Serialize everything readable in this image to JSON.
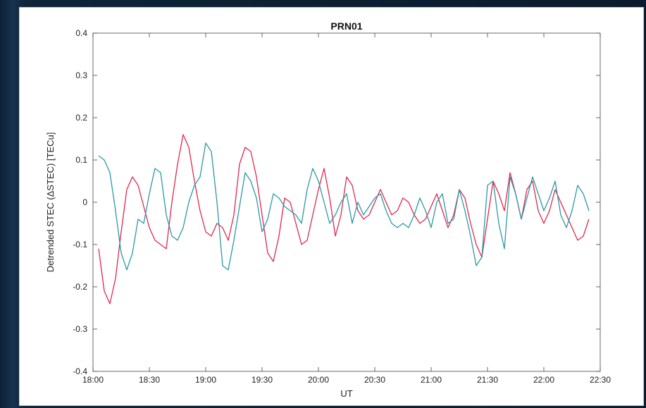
{
  "chart_data": {
    "type": "line",
    "title": "PRN01",
    "xlabel": "UT",
    "ylabel": "Detrended STEC (ΔSTEC) [TECu]",
    "xlim": [
      "18:00",
      "22:30"
    ],
    "ylim": [
      -0.4,
      0.4
    ],
    "xticks": [
      "18:00",
      "18:30",
      "19:00",
      "19:30",
      "20:00",
      "20:30",
      "21:00",
      "21:30",
      "22:00",
      "22:30"
    ],
    "yticks": [
      "-0.4",
      "-0.3",
      "-0.2",
      "-0.1",
      "0",
      "0.1",
      "0.2",
      "0.3",
      "0.4"
    ],
    "grid": false,
    "series": [
      {
        "color": "#e0284f",
        "x": [
          "18:03",
          "18:06",
          "18:09",
          "18:12",
          "18:15",
          "18:18",
          "18:21",
          "18:24",
          "18:27",
          "18:30",
          "18:33",
          "18:36",
          "18:39",
          "18:42",
          "18:45",
          "18:48",
          "18:51",
          "18:54",
          "18:57",
          "19:00",
          "19:03",
          "19:06",
          "19:09",
          "19:12",
          "19:15",
          "19:18",
          "19:21",
          "19:24",
          "19:27",
          "19:30",
          "19:33",
          "19:36",
          "19:39",
          "19:42",
          "19:45",
          "19:48",
          "19:51",
          "19:54",
          "19:57",
          "20:00",
          "20:03",
          "20:06",
          "20:09",
          "20:12",
          "20:15",
          "20:18",
          "20:21",
          "20:24",
          "20:27",
          "20:30",
          "20:33",
          "20:36",
          "20:39",
          "20:42",
          "20:45",
          "20:48",
          "20:51",
          "20:54",
          "20:57",
          "21:00",
          "21:03",
          "21:06",
          "21:09",
          "21:12",
          "21:15",
          "21:18",
          "21:21",
          "21:24",
          "21:27",
          "21:30",
          "21:33",
          "21:36",
          "21:39",
          "21:42",
          "21:45",
          "21:48",
          "21:51",
          "21:54",
          "21:57",
          "22:00",
          "22:03",
          "22:06",
          "22:09",
          "22:12",
          "22:15",
          "22:18",
          "22:21",
          "22:24"
        ],
        "y": [
          -0.11,
          -0.21,
          -0.24,
          -0.18,
          -0.07,
          0.03,
          0.06,
          0.04,
          -0.01,
          -0.06,
          -0.09,
          -0.1,
          -0.11,
          0.0,
          0.09,
          0.16,
          0.13,
          0.05,
          -0.02,
          -0.07,
          -0.08,
          -0.05,
          -0.06,
          -0.09,
          -0.03,
          0.09,
          0.13,
          0.12,
          0.06,
          -0.03,
          -0.12,
          -0.14,
          -0.08,
          0.01,
          0.0,
          -0.05,
          -0.1,
          -0.09,
          -0.03,
          0.03,
          0.08,
          0.01,
          -0.08,
          -0.03,
          0.06,
          0.04,
          -0.02,
          -0.04,
          -0.03,
          0.0,
          0.03,
          0.0,
          -0.03,
          -0.02,
          0.01,
          0.0,
          -0.03,
          -0.05,
          -0.04,
          -0.01,
          0.02,
          -0.02,
          -0.06,
          -0.03,
          0.03,
          0.01,
          -0.05,
          -0.1,
          -0.13,
          -0.04,
          0.05,
          0.02,
          -0.02,
          0.07,
          0.02,
          -0.04,
          0.03,
          0.05,
          -0.02,
          -0.05,
          -0.02,
          0.03,
          0.0,
          -0.03,
          -0.06,
          -0.09,
          -0.08,
          -0.04
        ]
      },
      {
        "color": "#2a9aa6",
        "x": [
          "18:03",
          "18:06",
          "18:09",
          "18:12",
          "18:15",
          "18:18",
          "18:21",
          "18:24",
          "18:27",
          "18:30",
          "18:33",
          "18:36",
          "18:39",
          "18:42",
          "18:45",
          "18:48",
          "18:51",
          "18:54",
          "18:57",
          "19:00",
          "19:03",
          "19:06",
          "19:09",
          "19:12",
          "19:15",
          "19:18",
          "19:21",
          "19:24",
          "19:27",
          "19:30",
          "19:33",
          "19:36",
          "19:39",
          "19:42",
          "19:45",
          "19:48",
          "19:51",
          "19:54",
          "19:57",
          "20:00",
          "20:03",
          "20:06",
          "20:09",
          "20:12",
          "20:15",
          "20:18",
          "20:21",
          "20:24",
          "20:27",
          "20:30",
          "20:33",
          "20:36",
          "20:39",
          "20:42",
          "20:45",
          "20:48",
          "20:51",
          "20:54",
          "20:57",
          "21:00",
          "21:03",
          "21:06",
          "21:09",
          "21:12",
          "21:15",
          "21:18",
          "21:21",
          "21:24",
          "21:27",
          "21:30",
          "21:33",
          "21:36",
          "21:39",
          "21:42",
          "21:45",
          "21:48",
          "21:51",
          "21:54",
          "21:57",
          "22:00",
          "22:03",
          "22:06",
          "22:09",
          "22:12",
          "22:15",
          "22:18",
          "22:21",
          "22:24"
        ],
        "y": [
          0.11,
          0.1,
          0.07,
          -0.02,
          -0.12,
          -0.16,
          -0.12,
          -0.04,
          -0.05,
          0.02,
          0.08,
          0.07,
          -0.03,
          -0.08,
          -0.09,
          -0.06,
          0.0,
          0.04,
          0.06,
          0.14,
          0.12,
          0.0,
          -0.15,
          -0.16,
          -0.09,
          -0.01,
          0.07,
          0.05,
          0.01,
          -0.07,
          -0.04,
          0.02,
          0.01,
          -0.01,
          -0.02,
          -0.03,
          -0.05,
          0.03,
          0.08,
          0.05,
          0.0,
          -0.05,
          -0.03,
          0.0,
          0.02,
          -0.05,
          0.0,
          -0.03,
          -0.01,
          0.01,
          0.02,
          -0.02,
          -0.05,
          -0.06,
          -0.05,
          -0.06,
          -0.03,
          0.01,
          -0.02,
          -0.06,
          0.0,
          0.02,
          -0.05,
          -0.04,
          0.03,
          -0.02,
          -0.08,
          -0.15,
          -0.13,
          0.04,
          0.05,
          -0.05,
          -0.11,
          0.06,
          0.02,
          -0.04,
          0.01,
          0.06,
          0.02,
          -0.02,
          0.01,
          0.05,
          -0.03,
          -0.06,
          -0.02,
          0.04,
          0.02,
          -0.02
        ]
      }
    ]
  }
}
